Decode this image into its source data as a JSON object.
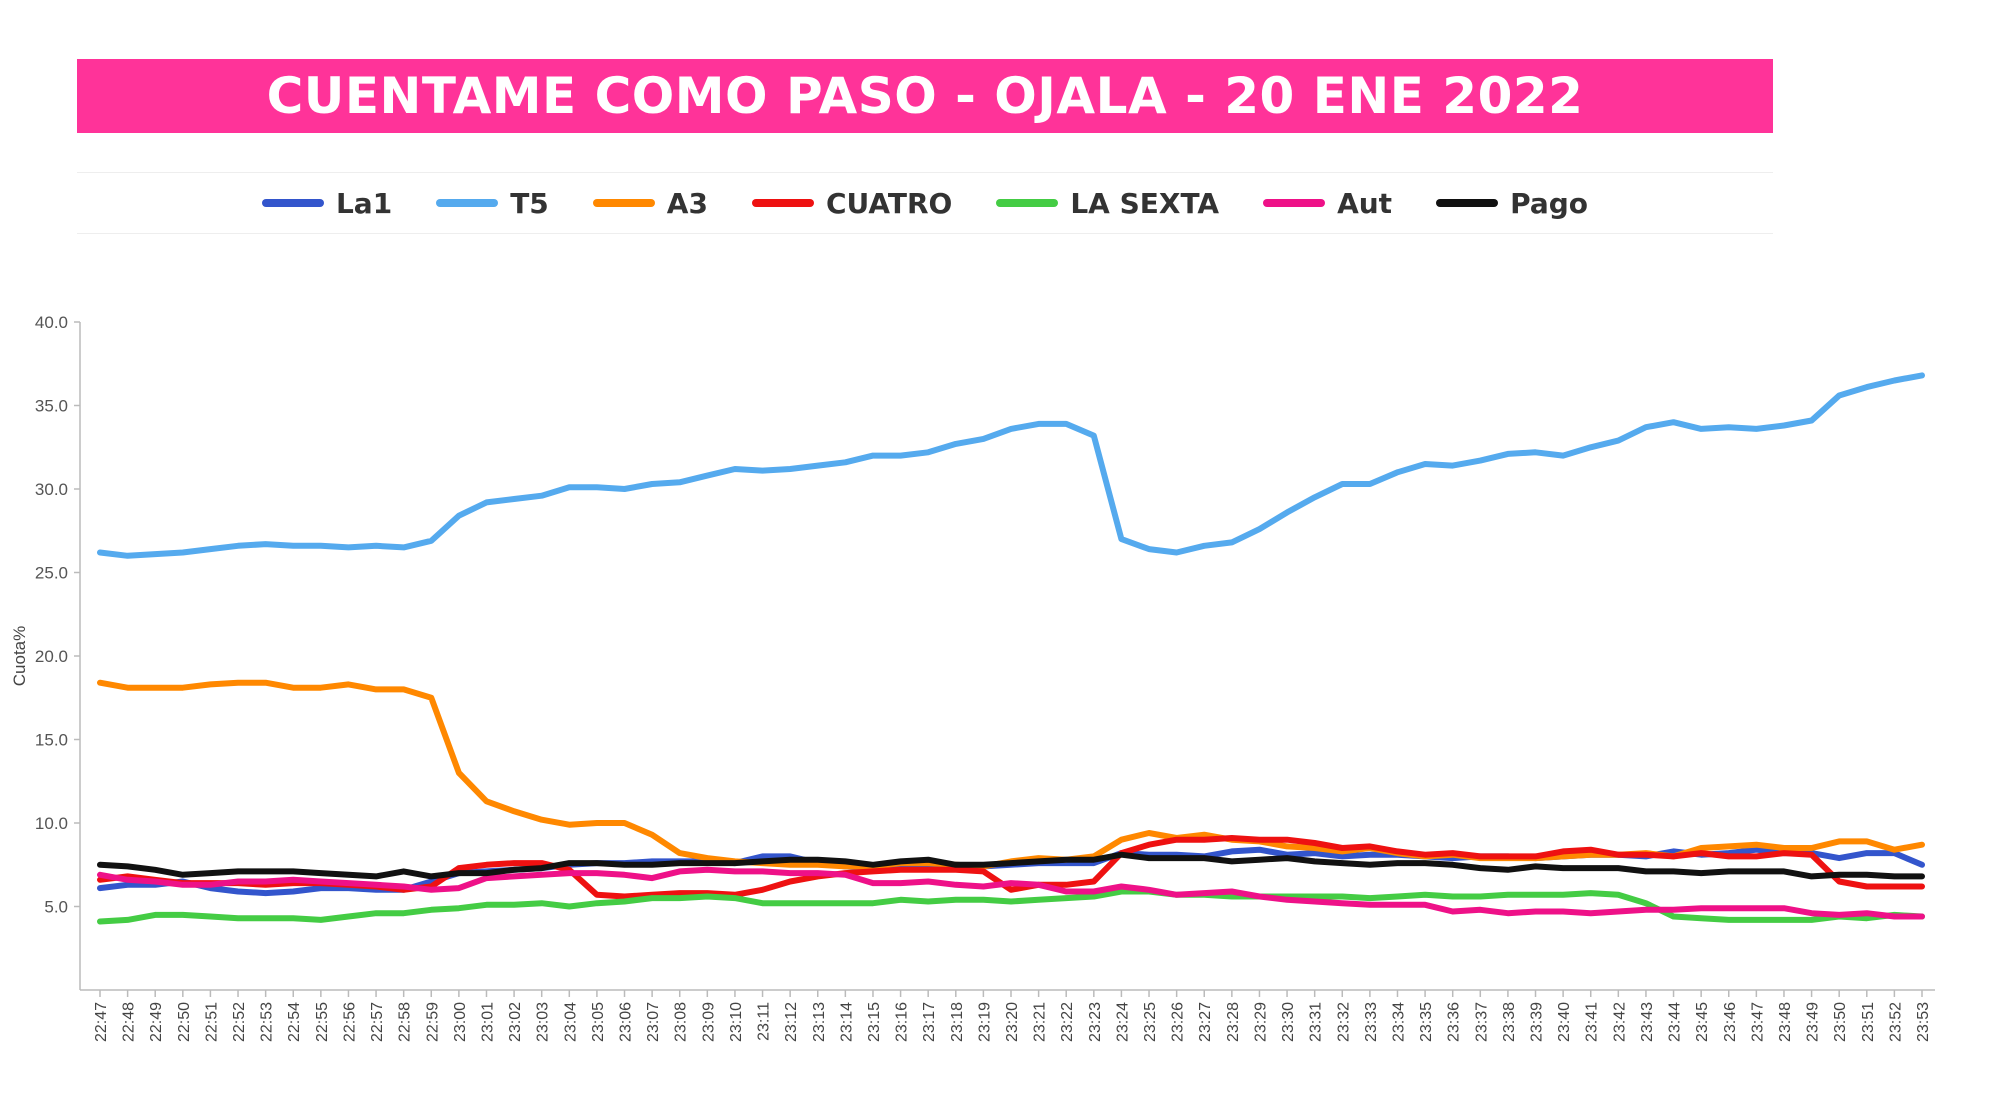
{
  "title": "CUENTAME COMO PASO - OJALA - 20 ENE 2022",
  "chart_data": {
    "type": "line",
    "title": "CUENTAME COMO PASO - OJALA - 20 ENE 2022",
    "xlabel": "",
    "ylabel": "Cuota%",
    "ylim": [
      0,
      40
    ],
    "yticks": [
      "40.0",
      "35.0",
      "30.0",
      "25.0",
      "20.0",
      "15.0",
      "10.0",
      "5.0"
    ],
    "legend_position": "top",
    "categories": [
      "22:47",
      "22:48",
      "22:49",
      "22:50",
      "22:51",
      "22:52",
      "22:53",
      "22:54",
      "22:55",
      "22:56",
      "22:57",
      "22:58",
      "22:59",
      "23:00",
      "23:01",
      "23:02",
      "23:03",
      "23:04",
      "23:05",
      "23:06",
      "23:07",
      "23:08",
      "23:09",
      "23:10",
      "23:11",
      "23:12",
      "23:13",
      "23:14",
      "23:15",
      "23:16",
      "23:17",
      "23:18",
      "23:19",
      "23:20",
      "23:21",
      "23:22",
      "23:23",
      "23:24",
      "23:25",
      "23:26",
      "23:27",
      "23:28",
      "23:29",
      "23:30",
      "23:31",
      "23:32",
      "23:33",
      "23:34",
      "23:35",
      "23:36",
      "23:37",
      "23:38",
      "23:39",
      "23:40",
      "23:41",
      "23:42",
      "23:43",
      "23:44",
      "23:45",
      "23:46",
      "23:47",
      "23:48",
      "23:49",
      "23:50",
      "23:51",
      "23:52",
      "23:53"
    ],
    "series": [
      {
        "name": "La1",
        "color": "#3355cc",
        "values": [
          6.1,
          6.3,
          6.3,
          6.5,
          6.1,
          5.9,
          5.8,
          5.9,
          6.1,
          6.1,
          6.0,
          6.0,
          6.5,
          7.0,
          7.1,
          7.2,
          7.3,
          7.5,
          7.6,
          7.6,
          7.7,
          7.7,
          7.7,
          7.6,
          8.0,
          8.0,
          7.6,
          7.4,
          7.3,
          7.4,
          7.5,
          7.5,
          7.4,
          7.5,
          7.6,
          7.6,
          7.6,
          8.2,
          8.1,
          8.1,
          8.0,
          8.3,
          8.4,
          8.1,
          8.2,
          8.0,
          8.1,
          8.1,
          8.0,
          7.9,
          8.0,
          8.0,
          7.9,
          8.0,
          8.1,
          8.1,
          8.0,
          8.3,
          8.1,
          8.2,
          8.4,
          8.2,
          8.2,
          7.9,
          8.2,
          8.2,
          7.5
        ]
      },
      {
        "name": "T5",
        "color": "#55aaee",
        "values": [
          26.2,
          26.0,
          26.1,
          26.2,
          26.4,
          26.6,
          26.7,
          26.6,
          26.6,
          26.5,
          26.6,
          26.5,
          26.9,
          28.4,
          29.2,
          29.4,
          29.6,
          30.1,
          30.1,
          30.0,
          30.3,
          30.4,
          30.8,
          31.2,
          31.1,
          31.2,
          31.4,
          31.6,
          32.0,
          32.0,
          32.2,
          32.7,
          33.0,
          33.6,
          33.9,
          33.9,
          33.2,
          27.0,
          26.4,
          26.2,
          26.6,
          26.8,
          27.6,
          28.6,
          29.5,
          30.3,
          30.3,
          31.0,
          31.5,
          31.4,
          31.7,
          32.1,
          32.2,
          32.0,
          32.5,
          32.9,
          33.7,
          34.0,
          33.6,
          33.7,
          33.6,
          33.8,
          34.1,
          35.6,
          36.1,
          36.5,
          36.8
        ]
      },
      {
        "name": "A3",
        "color": "#ff8800",
        "values": [
          18.4,
          18.1,
          18.1,
          18.1,
          18.3,
          18.4,
          18.4,
          18.1,
          18.1,
          18.3,
          18.0,
          18.0,
          17.5,
          13.0,
          11.3,
          10.7,
          10.2,
          9.9,
          10.0,
          10.0,
          9.3,
          8.2,
          7.9,
          7.7,
          7.6,
          7.5,
          7.5,
          7.4,
          7.4,
          7.6,
          7.6,
          7.5,
          7.4,
          7.7,
          7.9,
          7.8,
          8.0,
          9.0,
          9.4,
          9.1,
          9.3,
          9.0,
          8.9,
          8.6,
          8.5,
          8.3,
          8.5,
          8.2,
          8.0,
          8.1,
          7.9,
          7.9,
          7.9,
          8.0,
          8.1,
          8.1,
          8.2,
          8.0,
          8.5,
          8.6,
          8.7,
          8.5,
          8.5,
          8.9,
          8.9,
          8.4,
          8.7
        ]
      },
      {
        "name": "CUATRO",
        "color": "#ee1111",
        "values": [
          6.6,
          6.8,
          6.6,
          6.4,
          6.4,
          6.4,
          6.3,
          6.4,
          6.4,
          6.3,
          6.2,
          6.0,
          6.2,
          7.3,
          7.5,
          7.6,
          7.6,
          7.2,
          5.7,
          5.6,
          5.7,
          5.8,
          5.8,
          5.7,
          6.0,
          6.5,
          6.8,
          7.0,
          7.1,
          7.2,
          7.2,
          7.2,
          7.1,
          6.0,
          6.3,
          6.3,
          6.5,
          8.2,
          8.7,
          9.0,
          9.0,
          9.1,
          9.0,
          9.0,
          8.8,
          8.5,
          8.6,
          8.3,
          8.1,
          8.2,
          8.0,
          8.0,
          8.0,
          8.3,
          8.4,
          8.1,
          8.1,
          8.0,
          8.2,
          8.0,
          8.0,
          8.2,
          8.1,
          6.5,
          6.2,
          6.2,
          6.2
        ]
      },
      {
        "name": "LA SEXTA",
        "color": "#44cc44",
        "values": [
          4.1,
          4.2,
          4.5,
          4.5,
          4.4,
          4.3,
          4.3,
          4.3,
          4.2,
          4.4,
          4.6,
          4.6,
          4.8,
          4.9,
          5.1,
          5.1,
          5.2,
          5.0,
          5.2,
          5.3,
          5.5,
          5.5,
          5.6,
          5.5,
          5.2,
          5.2,
          5.2,
          5.2,
          5.2,
          5.4,
          5.3,
          5.4,
          5.4,
          5.3,
          5.4,
          5.5,
          5.6,
          5.9,
          5.9,
          5.7,
          5.7,
          5.6,
          5.6,
          5.6,
          5.6,
          5.6,
          5.5,
          5.6,
          5.7,
          5.6,
          5.6,
          5.7,
          5.7,
          5.7,
          5.8,
          5.7,
          5.2,
          4.4,
          4.3,
          4.2,
          4.2,
          4.2,
          4.2,
          4.4,
          4.3,
          4.5,
          4.4
        ]
      },
      {
        "name": "Aut",
        "color": "#ee1188",
        "values": [
          6.9,
          6.6,
          6.5,
          6.3,
          6.3,
          6.5,
          6.5,
          6.6,
          6.5,
          6.4,
          6.3,
          6.2,
          6.0,
          6.1,
          6.7,
          6.8,
          6.9,
          7.0,
          7.0,
          6.9,
          6.7,
          7.1,
          7.2,
          7.1,
          7.1,
          7.0,
          7.0,
          6.9,
          6.4,
          6.4,
          6.5,
          6.3,
          6.2,
          6.4,
          6.3,
          5.9,
          5.9,
          6.2,
          6.0,
          5.7,
          5.8,
          5.9,
          5.6,
          5.4,
          5.3,
          5.2,
          5.1,
          5.1,
          5.1,
          4.7,
          4.8,
          4.6,
          4.7,
          4.7,
          4.6,
          4.7,
          4.8,
          4.8,
          4.9,
          4.9,
          4.9,
          4.9,
          4.6,
          4.5,
          4.6,
          4.4,
          4.4
        ]
      },
      {
        "name": "Pago",
        "color": "#111111",
        "values": [
          7.5,
          7.4,
          7.2,
          6.9,
          7.0,
          7.1,
          7.1,
          7.1,
          7.0,
          6.9,
          6.8,
          7.1,
          6.8,
          7.0,
          7.0,
          7.2,
          7.3,
          7.6,
          7.6,
          7.5,
          7.5,
          7.6,
          7.6,
          7.6,
          7.7,
          7.8,
          7.8,
          7.7,
          7.5,
          7.7,
          7.8,
          7.5,
          7.5,
          7.6,
          7.7,
          7.8,
          7.8,
          8.1,
          7.9,
          7.9,
          7.9,
          7.7,
          7.8,
          7.9,
          7.7,
          7.6,
          7.5,
          7.6,
          7.6,
          7.5,
          7.3,
          7.2,
          7.4,
          7.3,
          7.3,
          7.3,
          7.1,
          7.1,
          7.0,
          7.1,
          7.1,
          7.1,
          6.8,
          6.9,
          6.9,
          6.8,
          6.8
        ]
      }
    ]
  }
}
